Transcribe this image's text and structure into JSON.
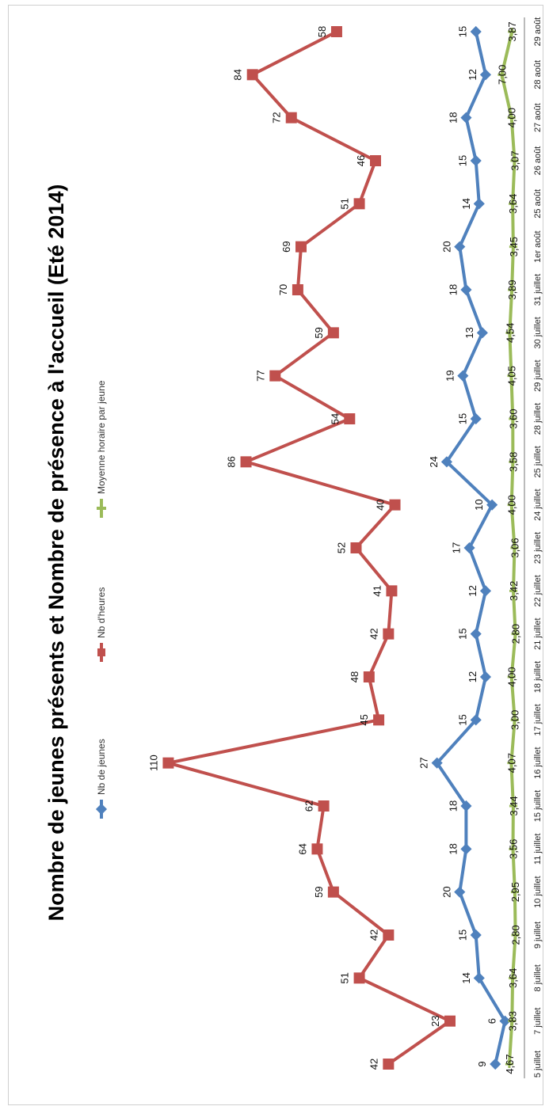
{
  "chart_data": {
    "type": "line",
    "title": "Nombre de jeunes présents et Nombre  de présence à l'accueil (Eté 2014)",
    "categories": [
      "5 juillet",
      "7 juillet",
      "8 juillet",
      "9 juillet",
      "10 juillet",
      "11 juillet",
      "15 juillet",
      "16 juillet",
      "17 juillet",
      "18 juillet",
      "21 juillet",
      "22 juillet",
      "23 juillet",
      "24 juillet",
      "25 juillet",
      "28 juillet",
      "29 juillet",
      "30 juillet",
      "31 juillet",
      "1er août",
      "25 août",
      "26 août",
      "27 août",
      "28 août",
      "29 août"
    ],
    "series": [
      {
        "name": "Nb de jeunes",
        "color": "#4f81bd",
        "marker": "diamond",
        "values": [
          9,
          6,
          14,
          15,
          20,
          18,
          18,
          27,
          15,
          12,
          15,
          12,
          17,
          10,
          24,
          15,
          19,
          13,
          18,
          20,
          14,
          15,
          18,
          12,
          15
        ],
        "labels": [
          "9",
          "6",
          "14",
          "15",
          "20",
          "18",
          "18",
          "27",
          "15",
          "12",
          "15",
          "12",
          "17",
          "10",
          "24",
          "15",
          "19",
          "13",
          "18",
          "20",
          "14",
          "15",
          "18",
          "12",
          "15"
        ]
      },
      {
        "name": "Nb d'heures",
        "color": "#c0504d",
        "marker": "square",
        "values": [
          42,
          23,
          51,
          42,
          59,
          64,
          62,
          110,
          45,
          48,
          42,
          41,
          52,
          40,
          86,
          54,
          77,
          59,
          70,
          69,
          51,
          46,
          72,
          84,
          58
        ],
        "labels": [
          "42",
          "23",
          "51",
          "42",
          "59",
          "64",
          "62",
          "110",
          "45",
          "48",
          "42",
          "41",
          "52",
          "40",
          "86",
          "54",
          "77",
          "59",
          "70",
          "69",
          "51",
          "46",
          "72",
          "84",
          "58"
        ]
      },
      {
        "name": "Moyenne horaire par jeune",
        "color": "#9bbb59",
        "marker": "plus",
        "values": [
          4.67,
          3.83,
          3.64,
          2.8,
          2.95,
          3.56,
          3.44,
          4.07,
          3.0,
          4.0,
          2.8,
          3.42,
          3.06,
          4.0,
          3.58,
          3.6,
          4.05,
          4.54,
          3.89,
          3.45,
          3.64,
          3.07,
          4.0,
          7.0,
          3.87
        ],
        "labels": [
          "4,67",
          "3,83",
          "3,64",
          "2,80",
          "2,95",
          "3,56",
          "3,44",
          "4,07",
          "3,00",
          "4,00",
          "2,80",
          "3,42",
          "3,06",
          "4,00",
          "3,58",
          "3,60",
          "4,05",
          "4,54",
          "3,89",
          "3,45",
          "3,64",
          "3,07",
          "4,00",
          "7,00",
          "3,87"
        ]
      }
    ],
    "ylim": [
      0,
      115
    ],
    "grid": false,
    "legend_position": "top",
    "orientation": "rotated 90° counter-clockwise"
  }
}
